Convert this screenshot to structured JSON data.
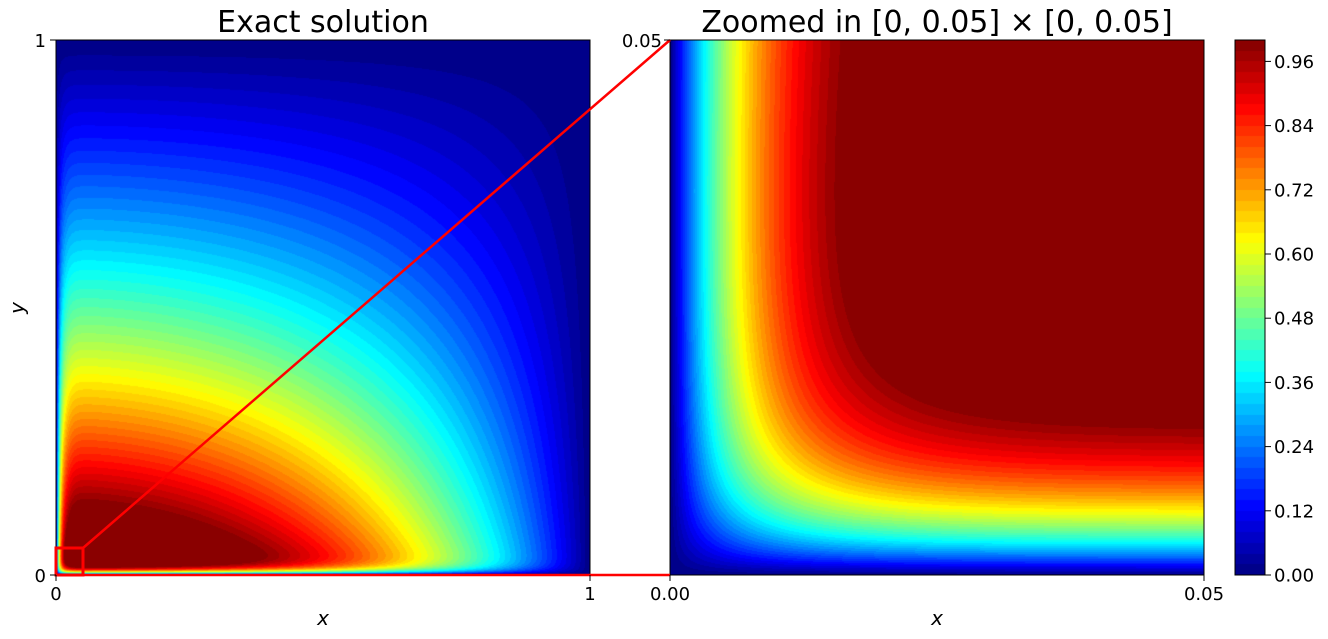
{
  "chart_data": [
    {
      "type": "heatmap",
      "title": "Exact solution",
      "xlabel": "x",
      "ylabel": "y",
      "xlim": [
        0,
        1
      ],
      "ylim": [
        0,
        1
      ],
      "xticks": [
        "0",
        "1"
      ],
      "yticks": [
        "0",
        "1"
      ],
      "colormap": "jet",
      "peak_location": [
        0.05,
        0.1
      ],
      "zoom_box": {
        "x": [
          0,
          0.05
        ],
        "y": [
          0,
          0.05
        ],
        "color": "#ff0000"
      }
    },
    {
      "type": "heatmap",
      "title": "Zoomed in [0, 0.05] × [0, 0.05]",
      "xlabel": "x",
      "ylabel": "",
      "xlim": [
        0,
        0.05
      ],
      "ylim": [
        0,
        0.05
      ],
      "xticks": [
        "0.00",
        "0.05"
      ],
      "yticks": [
        "0.05"
      ],
      "colormap": "jet"
    }
  ],
  "colorbar": {
    "min": 0.0,
    "max": 1.0,
    "levels": 50,
    "ticks": [
      "0.00",
      "0.12",
      "0.24",
      "0.36",
      "0.48",
      "0.60",
      "0.72",
      "0.84",
      "0.96"
    ],
    "tick_values": [
      0.0,
      0.12,
      0.24,
      0.36,
      0.48,
      0.6,
      0.72,
      0.84,
      0.96
    ]
  },
  "connector_color": "#ff0000"
}
